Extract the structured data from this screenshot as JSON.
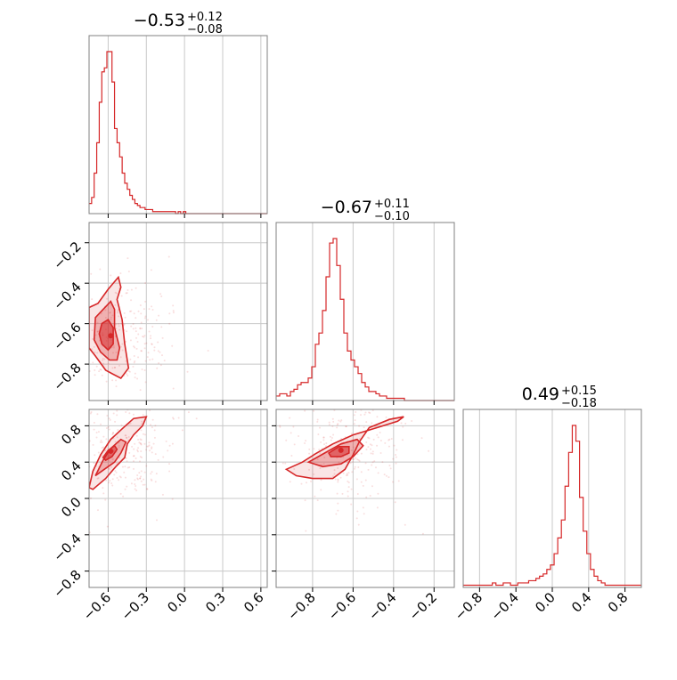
{
  "colors": {
    "accent": "#d62728",
    "grid": "#c8c8c8",
    "frame": "#808080"
  },
  "chart_data": {
    "type": "corner",
    "parameters": [
      "p0",
      "p1",
      "p2"
    ],
    "titles": [
      {
        "median": "−0.53",
        "upper": "+0.12",
        "lower": "−0.08"
      },
      {
        "median": "−0.67",
        "upper": "+0.11",
        "lower": "−0.10"
      },
      {
        "median": "0.49",
        "upper": "+0.15",
        "lower": "−0.18"
      }
    ],
    "ranges": [
      [
        -0.75,
        0.65
      ],
      [
        -0.98,
        -0.1
      ],
      [
        -0.98,
        0.98
      ]
    ],
    "grid": true,
    "tick_values": {
      "p0": [
        -0.6,
        -0.3,
        0.0,
        0.3,
        0.6
      ],
      "p1": [
        -0.8,
        -0.6,
        -0.4,
        -0.2
      ],
      "p2": [
        -0.8,
        -0.4,
        0.0,
        0.4,
        0.8
      ]
    },
    "tick_labels": {
      "p0": [
        "−0.6",
        "−0.3",
        "0.0",
        "0.3",
        "0.6"
      ],
      "p1": [
        "−0.8",
        "−0.6",
        "−0.4",
        "−0.2"
      ],
      "p2": [
        "−0.8",
        "−0.4",
        "0.0",
        "0.4",
        "0.8"
      ]
    },
    "histograms": [
      {
        "edges_start": -0.75,
        "bin_width": 0.02,
        "counts": [
          5,
          8,
          20,
          35,
          55,
          70,
          72,
          80,
          80,
          65,
          42,
          35,
          28,
          20,
          15,
          12,
          9,
          7,
          5,
          4,
          3,
          3,
          2,
          2,
          2,
          1,
          1,
          1,
          1,
          1,
          1,
          1,
          1,
          1,
          0,
          1,
          0,
          1,
          0,
          0,
          0,
          0,
          0,
          0,
          0,
          0,
          0,
          0,
          0,
          0,
          0,
          0,
          0,
          0,
          0,
          0,
          0,
          0,
          0,
          0,
          0,
          0,
          0,
          0,
          0,
          0,
          0,
          0,
          0,
          0
        ]
      },
      {
        "edges_start": -0.98,
        "bin_width": 0.0176,
        "counts": [
          2,
          3,
          3,
          2,
          4,
          5,
          7,
          8,
          8,
          10,
          15,
          25,
          30,
          40,
          55,
          70,
          72,
          60,
          45,
          30,
          22,
          18,
          15,
          12,
          8,
          6,
          4,
          4,
          3,
          2,
          2,
          1,
          1,
          1,
          1,
          1,
          0,
          0,
          0,
          0,
          0,
          0,
          0,
          0,
          0,
          0,
          0,
          0,
          0,
          0
        ]
      },
      {
        "edges_start": -0.98,
        "bin_width": 0.04,
        "counts": [
          1,
          1,
          1,
          1,
          1,
          1,
          1,
          1,
          2,
          1,
          1,
          2,
          2,
          1,
          1,
          2,
          2,
          2,
          3,
          3,
          4,
          5,
          6,
          8,
          10,
          15,
          22,
          30,
          45,
          60,
          72,
          65,
          40,
          25,
          15,
          8,
          5,
          3,
          2,
          1,
          1,
          1,
          1,
          1,
          1,
          1,
          1,
          1,
          1,
          1
        ]
      }
    ],
    "contours_2d": [
      {
        "x_param": "p0",
        "y_param": "p1",
        "peak": [
          -0.58,
          -0.66
        ],
        "levels": [
          [
            [
              -0.75,
              -0.52
            ],
            [
              -0.68,
              -0.5
            ],
            [
              -0.6,
              -0.43
            ],
            [
              -0.52,
              -0.37
            ],
            [
              -0.5,
              -0.42
            ],
            [
              -0.53,
              -0.48
            ],
            [
              -0.49,
              -0.58
            ],
            [
              -0.47,
              -0.7
            ],
            [
              -0.44,
              -0.82
            ],
            [
              -0.5,
              -0.87
            ],
            [
              -0.56,
              -0.85
            ],
            [
              -0.62,
              -0.83
            ],
            [
              -0.7,
              -0.76
            ],
            [
              -0.75,
              -0.72
            ]
          ],
          [
            [
              -0.7,
              -0.57
            ],
            [
              -0.64,
              -0.53
            ],
            [
              -0.58,
              -0.49
            ],
            [
              -0.55,
              -0.53
            ],
            [
              -0.55,
              -0.62
            ],
            [
              -0.51,
              -0.72
            ],
            [
              -0.53,
              -0.78
            ],
            [
              -0.59,
              -0.78
            ],
            [
              -0.66,
              -0.74
            ],
            [
              -0.71,
              -0.68
            ]
          ],
          [
            [
              -0.65,
              -0.6
            ],
            [
              -0.6,
              -0.58
            ],
            [
              -0.56,
              -0.62
            ],
            [
              -0.56,
              -0.7
            ],
            [
              -0.6,
              -0.73
            ],
            [
              -0.65,
              -0.7
            ],
            [
              -0.67,
              -0.65
            ]
          ]
        ]
      },
      {
        "x_param": "p0",
        "y_param": "p2",
        "peak": [
          -0.58,
          0.52
        ],
        "levels": [
          [
            [
              -0.75,
              0.12
            ],
            [
              -0.72,
              0.3
            ],
            [
              -0.66,
              0.48
            ],
            [
              -0.58,
              0.65
            ],
            [
              -0.48,
              0.78
            ],
            [
              -0.4,
              0.88
            ],
            [
              -0.3,
              0.9
            ],
            [
              -0.33,
              0.8
            ],
            [
              -0.4,
              0.7
            ],
            [
              -0.45,
              0.6
            ],
            [
              -0.47,
              0.45
            ],
            [
              -0.54,
              0.35
            ],
            [
              -0.62,
              0.22
            ],
            [
              -0.72,
              0.1
            ]
          ],
          [
            [
              -0.7,
              0.25
            ],
            [
              -0.64,
              0.42
            ],
            [
              -0.58,
              0.55
            ],
            [
              -0.5,
              0.65
            ],
            [
              -0.46,
              0.62
            ],
            [
              -0.5,
              0.5
            ],
            [
              -0.55,
              0.4
            ],
            [
              -0.63,
              0.32
            ]
          ],
          [
            [
              -0.64,
              0.45
            ],
            [
              -0.6,
              0.53
            ],
            [
              -0.55,
              0.58
            ],
            [
              -0.53,
              0.54
            ],
            [
              -0.57,
              0.46
            ],
            [
              -0.62,
              0.42
            ]
          ]
        ]
      },
      {
        "x_param": "p1",
        "y_param": "p2",
        "peak": [
          -0.66,
          0.53
        ],
        "levels": [
          [
            [
              -0.93,
              0.32
            ],
            [
              -0.85,
              0.4
            ],
            [
              -0.78,
              0.5
            ],
            [
              -0.7,
              0.6
            ],
            [
              -0.6,
              0.7
            ],
            [
              -0.48,
              0.78
            ],
            [
              -0.38,
              0.85
            ],
            [
              -0.35,
              0.9
            ],
            [
              -0.42,
              0.87
            ],
            [
              -0.52,
              0.78
            ],
            [
              -0.57,
              0.62
            ],
            [
              -0.6,
              0.48
            ],
            [
              -0.64,
              0.32
            ],
            [
              -0.7,
              0.22
            ],
            [
              -0.8,
              0.22
            ],
            [
              -0.88,
              0.25
            ]
          ],
          [
            [
              -0.82,
              0.4
            ],
            [
              -0.74,
              0.5
            ],
            [
              -0.66,
              0.6
            ],
            [
              -0.58,
              0.65
            ],
            [
              -0.55,
              0.58
            ],
            [
              -0.6,
              0.46
            ],
            [
              -0.66,
              0.38
            ],
            [
              -0.75,
              0.35
            ]
          ],
          [
            [
              -0.72,
              0.5
            ],
            [
              -0.67,
              0.57
            ],
            [
              -0.62,
              0.57
            ],
            [
              -0.62,
              0.5
            ],
            [
              -0.66,
              0.46
            ],
            [
              -0.71,
              0.46
            ]
          ]
        ]
      }
    ]
  }
}
